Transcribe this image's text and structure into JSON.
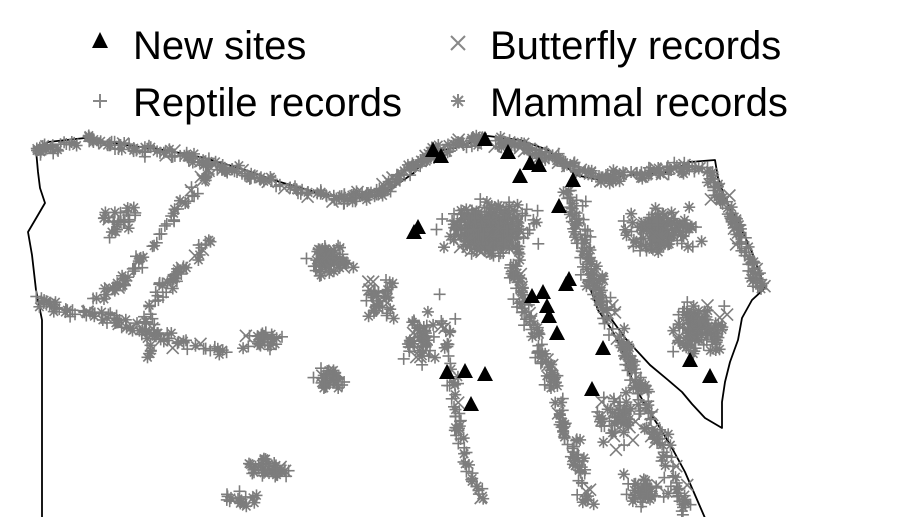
{
  "legend": {
    "items": [
      {
        "label": "New sites",
        "marker": "triangle",
        "color": "#000000"
      },
      {
        "label": "Butterfly records",
        "marker": "cross",
        "color": "#888888"
      },
      {
        "label": "Reptile records",
        "marker": "plus",
        "color": "#888888"
      },
      {
        "label": "Mammal records",
        "marker": "asterisk",
        "color": "#888888"
      }
    ]
  },
  "colors": {
    "records": "#7d7d7d",
    "new_sites": "#000000",
    "boundary": "#000000",
    "background": "#ffffff"
  }
}
